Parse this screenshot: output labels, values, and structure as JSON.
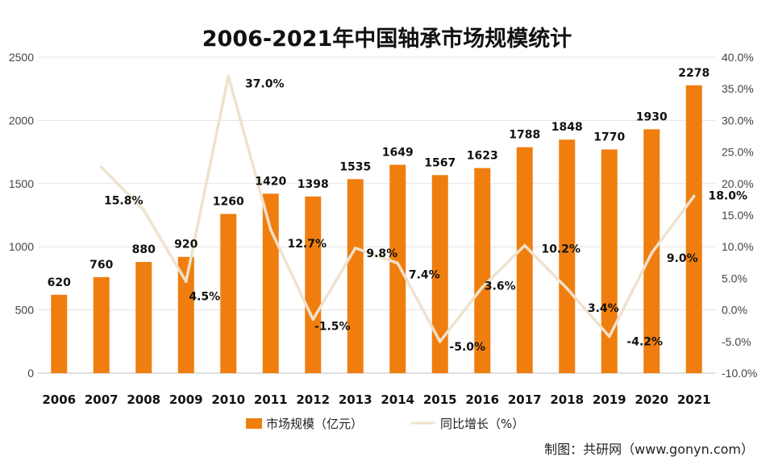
{
  "chart_data": {
    "type": "bar",
    "title": "2006-2021年中国轴承市场规模统计",
    "categories": [
      "2006",
      "2007",
      "2008",
      "2009",
      "2010",
      "2011",
      "2012",
      "2013",
      "2014",
      "2015",
      "2016",
      "2017",
      "2018",
      "2019",
      "2020",
      "2021"
    ],
    "series": [
      {
        "name": "市场规模（亿元）",
        "type": "bar",
        "axis": "left",
        "color": "#F07E0F",
        "values": [
          620,
          760,
          880,
          920,
          1260,
          1420,
          1398,
          1535,
          1649,
          1567,
          1623,
          1788,
          1848,
          1770,
          1930,
          2278
        ],
        "labels": [
          "620",
          "760",
          "880",
          "920",
          "1260",
          "1420",
          "1398",
          "1535",
          "1649",
          "1567",
          "1623",
          "1788",
          "1848",
          "1770",
          "1930",
          "2278"
        ]
      },
      {
        "name": "同比增长（%）",
        "type": "line",
        "axis": "right",
        "color": "#EFE2CD",
        "values": [
          null,
          22.6,
          15.8,
          4.5,
          37.0,
          12.7,
          -1.5,
          9.8,
          7.4,
          -5.0,
          3.6,
          10.2,
          3.4,
          -4.2,
          9.0,
          18.0
        ],
        "labels": [
          null,
          null,
          "15.8%",
          "4.5%",
          "37.0%",
          "12.7%",
          "-1.5%",
          "9.8%",
          "7.4%",
          "-5.0%",
          "3.6%",
          "10.2%",
          "3.4%",
          "-4.2%",
          "9.0%",
          "18.0%"
        ]
      }
    ],
    "y_left": {
      "ylim": [
        0,
        2500
      ],
      "ticks": [
        "0",
        "500",
        "1000",
        "1500",
        "2000",
        "2500"
      ]
    },
    "y_right": {
      "ylim": [
        -10,
        40
      ],
      "ticks": [
        "-10.0%",
        "-5.0%",
        "0.0%",
        "5.0%",
        "10.0%",
        "15.0%",
        "20.0%",
        "25.0%",
        "30.0%",
        "35.0%",
        "40.0%"
      ]
    },
    "grid": true,
    "legend": "bottom-center"
  },
  "source": "制图：共研网（www.gonyn.com）"
}
